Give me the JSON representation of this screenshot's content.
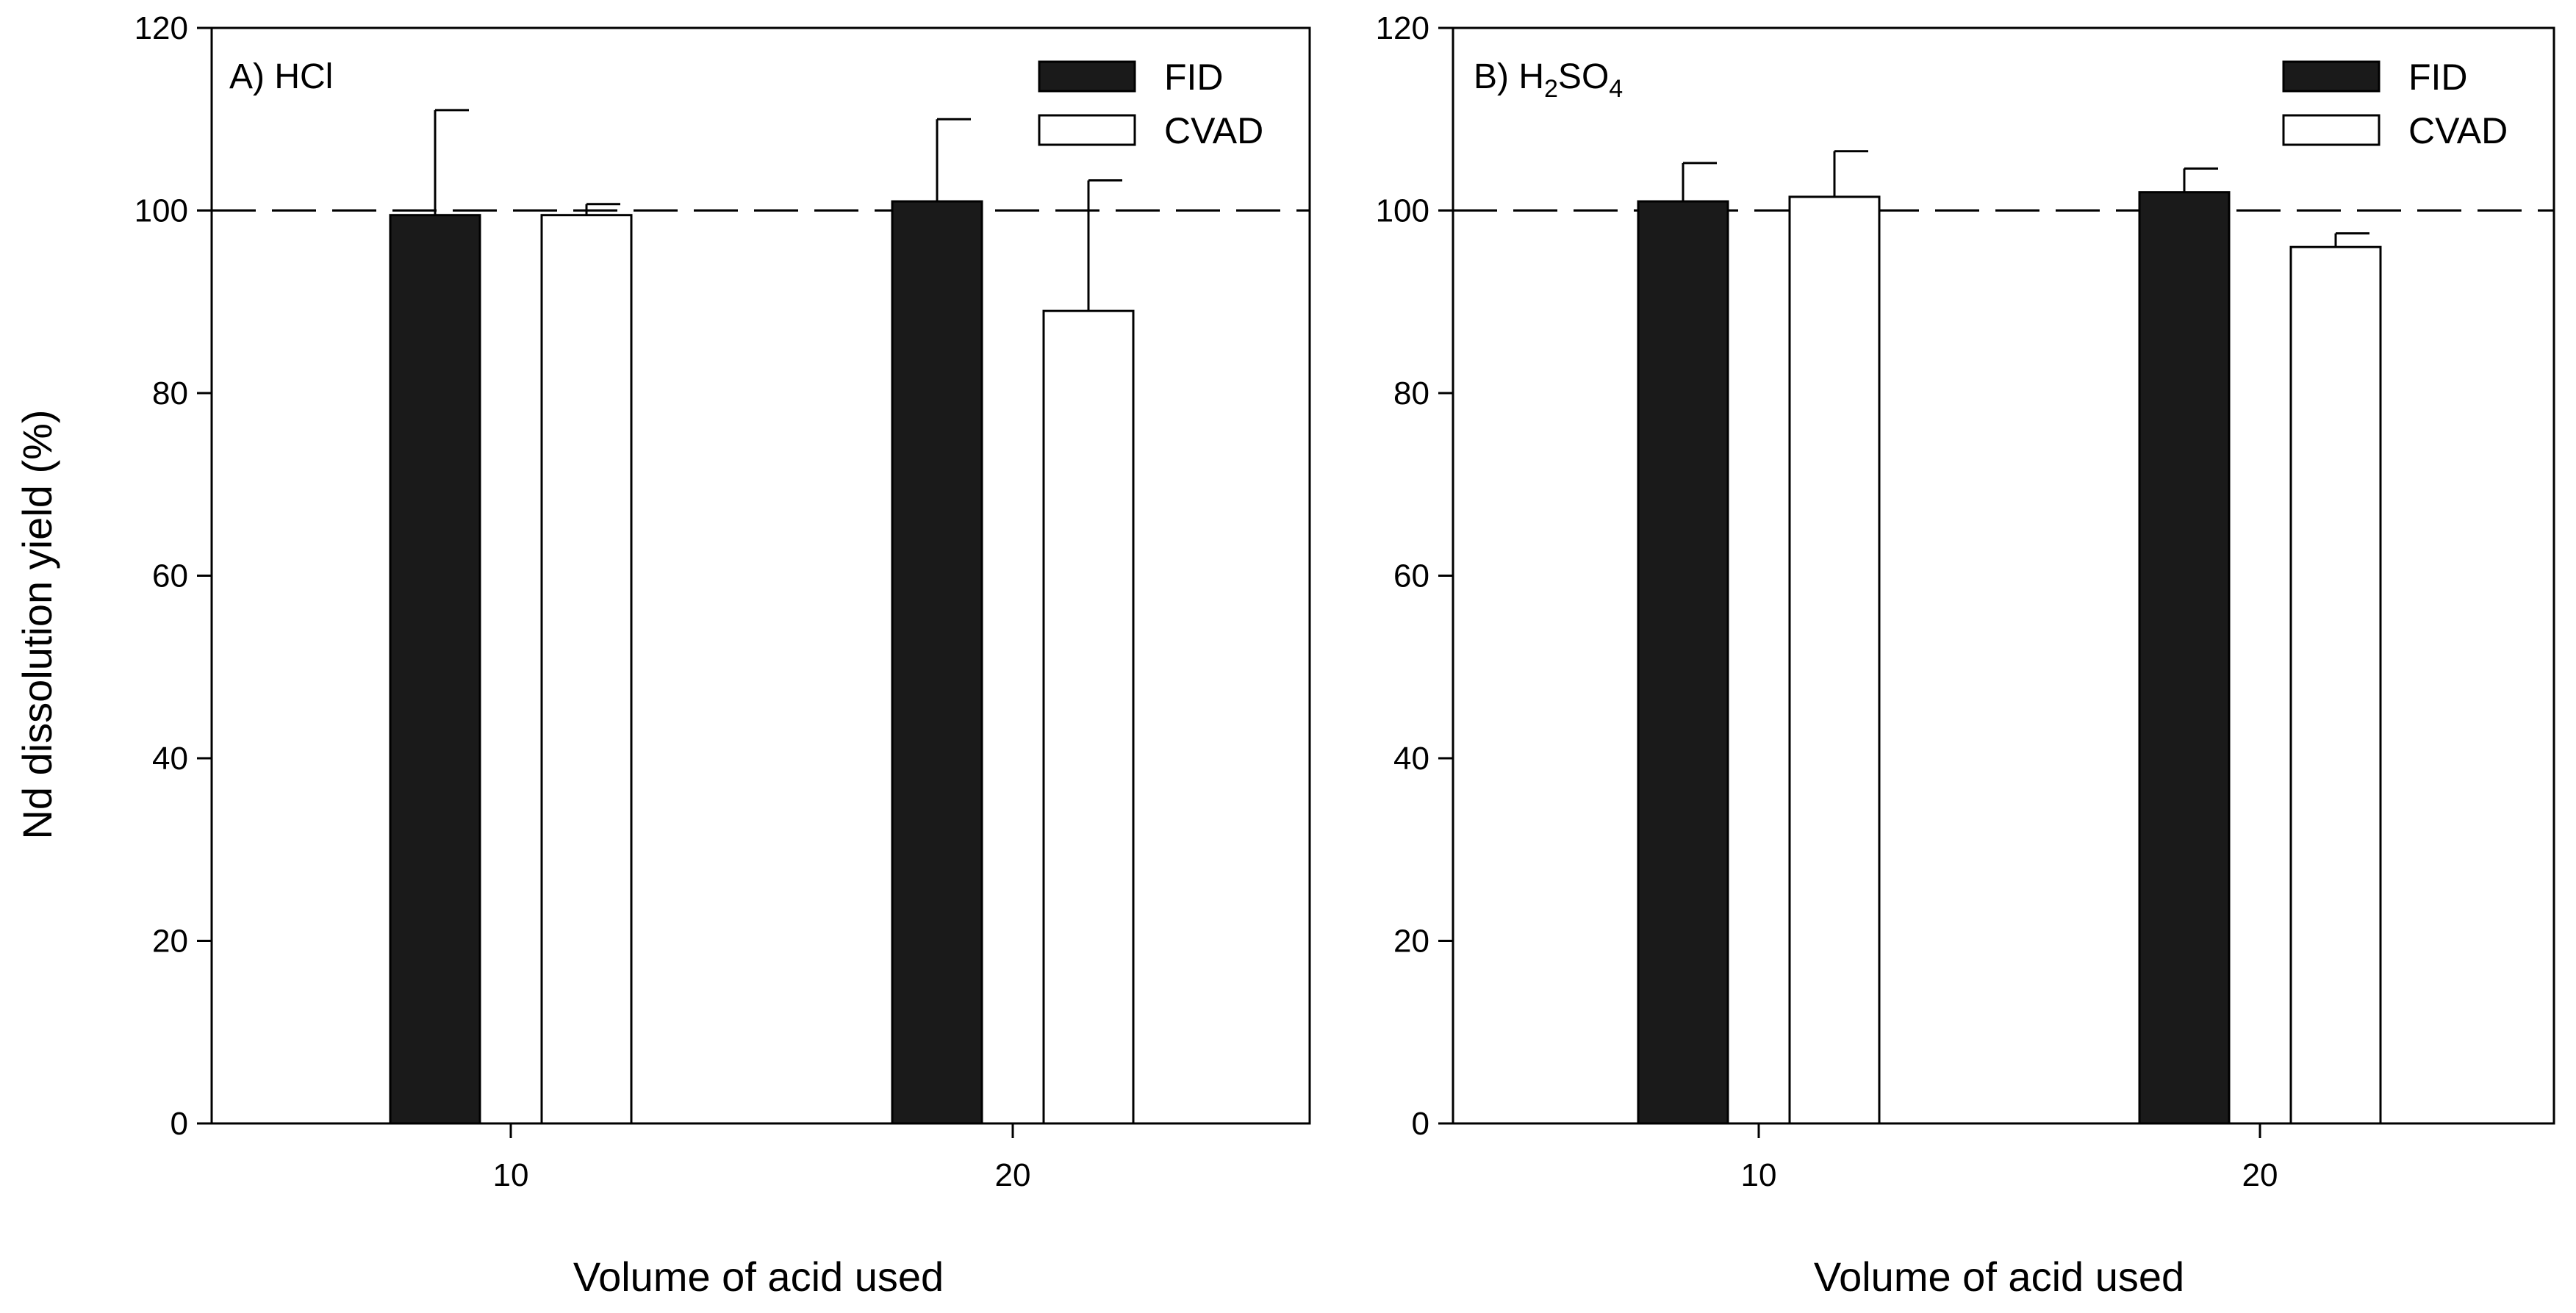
{
  "chart_data": [
    {
      "type": "bar",
      "panel_label": "A) HCl",
      "panel_label_main": "A) HCl",
      "categories": [
        "10",
        "20"
      ],
      "series": [
        {
          "name": "FID",
          "color": "#1a1a1a",
          "values": [
            99.5,
            101
          ],
          "errors": [
            11.5,
            9
          ]
        },
        {
          "name": "CVAD",
          "color": "#ffffff",
          "values": [
            99.5,
            89
          ],
          "errors": [
            1.2,
            14.3
          ]
        }
      ],
      "xlabel": "Volume of acid used",
      "ylabel": "Nd dissolution yield (%)",
      "ylim": [
        0,
        120
      ],
      "yticks": [
        "0",
        "20",
        "40",
        "60",
        "80",
        "100",
        "120"
      ],
      "reference_line": 100,
      "legend_position": "top-right",
      "grid": false
    },
    {
      "type": "bar",
      "panel_label": "B) H2SO4",
      "panel_label_main": "B) H",
      "panel_label_sub1": "2",
      "panel_label_mid": "SO",
      "panel_label_sub2": "4",
      "categories": [
        "10",
        "20"
      ],
      "series": [
        {
          "name": "FID",
          "color": "#1a1a1a",
          "values": [
            101,
            102
          ],
          "errors": [
            4.2,
            2.6
          ]
        },
        {
          "name": "CVAD",
          "color": "#ffffff",
          "values": [
            101.5,
            96
          ],
          "errors": [
            5,
            1.5
          ]
        }
      ],
      "xlabel": "Volume of acid used",
      "ylabel": "",
      "ylim": [
        0,
        120
      ],
      "yticks": [
        "0",
        "20",
        "40",
        "60",
        "80",
        "100",
        "120"
      ],
      "reference_line": 100,
      "legend_position": "top-right",
      "grid": false
    }
  ]
}
